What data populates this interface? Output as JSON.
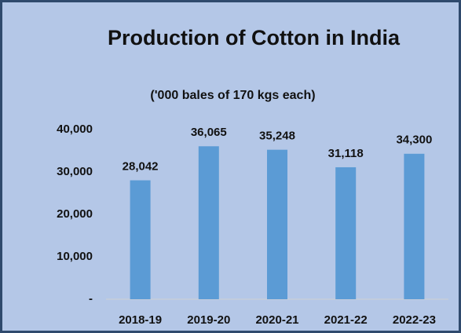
{
  "chart_data": {
    "type": "bar",
    "title": "Production of Cotton in India",
    "subtitle": "('000 bales of 170 kgs each)",
    "categories": [
      "2018-19",
      "2019-20",
      "2020-21",
      "2021-22",
      "2022-23"
    ],
    "values": [
      28042,
      36065,
      35248,
      31118,
      34300
    ],
    "value_labels": [
      "28,042",
      "36,065",
      "35,248",
      "31,118",
      "34,300"
    ],
    "color": "#5b9bd5",
    "ylim": [
      0,
      40000
    ],
    "yticks": [
      {
        "value": 0,
        "label": "-"
      },
      {
        "value": 10000,
        "label": "10,000"
      },
      {
        "value": 20000,
        "label": "20,000"
      },
      {
        "value": 30000,
        "label": "30,000"
      },
      {
        "value": 40000,
        "label": "40,000"
      }
    ],
    "grid": false
  }
}
